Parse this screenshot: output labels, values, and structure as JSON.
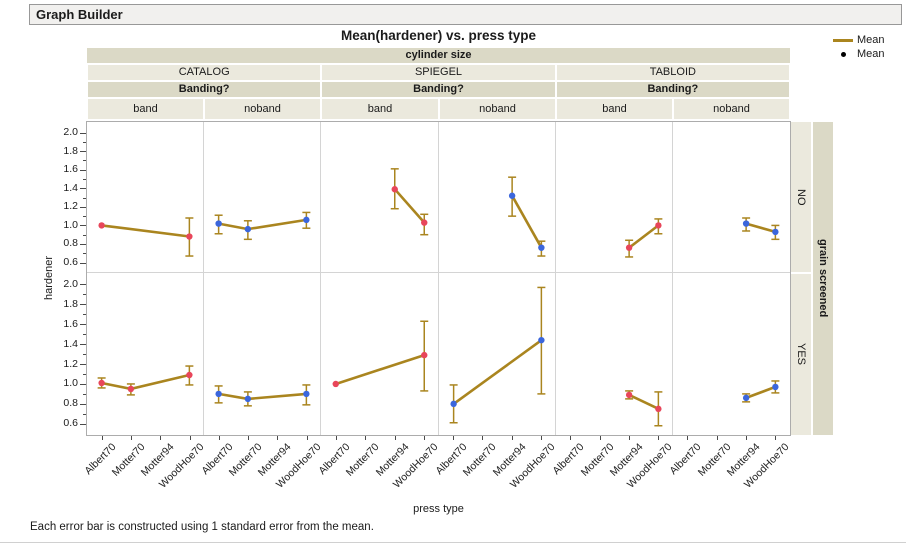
{
  "window": {
    "title": "Graph Builder"
  },
  "legend": {
    "line_label": "Mean",
    "point_label": "Mean"
  },
  "footer_note": "Each error bar is constructed using 1 standard error from the mean.",
  "colors": {
    "mean_line": "#aa851f",
    "markers": {
      "band": "#e8465a",
      "noband": "#3b66dc"
    },
    "legend_point": "#000000",
    "header_dark": "#dbd9c6",
    "header_light": "#ebe9dd",
    "frame_border": "#acacac",
    "inner_divider": "#d4d4d4"
  },
  "chart_data": {
    "type": "line",
    "title": "Mean(hardener) vs. press type",
    "xlabel": "press type",
    "ylabel": "hardener",
    "x_categories": [
      "Albert70",
      "Motter70",
      "Motter94",
      "WoodHoe70"
    ],
    "yticks": [
      0.6,
      0.8,
      1.0,
      1.2,
      1.4,
      1.6,
      1.8,
      2.0
    ],
    "ylim": [
      0.487,
      2.115
    ],
    "grid": false,
    "legend_position": "top-right",
    "column_group_label": "cylinder size",
    "column_groups": [
      "CATALOG",
      "SPIEGEL",
      "TABLOID"
    ],
    "column_subgroup_label": "Banding?",
    "column_subgroups": [
      "band",
      "noband"
    ],
    "row_group_label": "grain screened",
    "row_groups": [
      "NO",
      "YES"
    ],
    "error_bar": "1 standard error of the mean",
    "panels": [
      {
        "row": "NO",
        "col": "CATALOG",
        "sub": "band",
        "points": [
          {
            "x": "Albert70",
            "mean": 1.0
          },
          {
            "x": "WoodHoe70",
            "mean": 0.88,
            "lo": 0.67,
            "hi": 1.08
          }
        ]
      },
      {
        "row": "NO",
        "col": "CATALOG",
        "sub": "noband",
        "points": [
          {
            "x": "Albert70",
            "mean": 1.02,
            "lo": 0.91,
            "hi": 1.11
          },
          {
            "x": "Motter70",
            "mean": 0.96,
            "lo": 0.85,
            "hi": 1.05
          },
          {
            "x": "WoodHoe70",
            "mean": 1.06,
            "lo": 0.97,
            "hi": 1.14
          }
        ]
      },
      {
        "row": "NO",
        "col": "SPIEGEL",
        "sub": "band",
        "points": [
          {
            "x": "Motter94",
            "mean": 1.39,
            "lo": 1.18,
            "hi": 1.61
          },
          {
            "x": "WoodHoe70",
            "mean": 1.03,
            "lo": 0.9,
            "hi": 1.12
          }
        ]
      },
      {
        "row": "NO",
        "col": "SPIEGEL",
        "sub": "noband",
        "points": [
          {
            "x": "Motter94",
            "mean": 1.32,
            "lo": 1.1,
            "hi": 1.52
          },
          {
            "x": "WoodHoe70",
            "mean": 0.76,
            "lo": 0.67,
            "hi": 0.83
          }
        ]
      },
      {
        "row": "NO",
        "col": "TABLOID",
        "sub": "band",
        "points": [
          {
            "x": "Motter94",
            "mean": 0.76,
            "lo": 0.66,
            "hi": 0.84
          },
          {
            "x": "WoodHoe70",
            "mean": 1.0,
            "lo": 0.91,
            "hi": 1.07
          }
        ]
      },
      {
        "row": "NO",
        "col": "TABLOID",
        "sub": "noband",
        "points": [
          {
            "x": "Motter94",
            "mean": 1.02,
            "lo": 0.94,
            "hi": 1.08
          },
          {
            "x": "WoodHoe70",
            "mean": 0.93,
            "lo": 0.85,
            "hi": 1.0
          }
        ]
      },
      {
        "row": "YES",
        "col": "CATALOG",
        "sub": "band",
        "points": [
          {
            "x": "Albert70",
            "mean": 1.01,
            "lo": 0.96,
            "hi": 1.06
          },
          {
            "x": "Motter70",
            "mean": 0.95,
            "lo": 0.89,
            "hi": 1.0
          },
          {
            "x": "WoodHoe70",
            "mean": 1.09,
            "lo": 0.99,
            "hi": 1.18
          }
        ]
      },
      {
        "row": "YES",
        "col": "CATALOG",
        "sub": "noband",
        "points": [
          {
            "x": "Albert70",
            "mean": 0.9,
            "lo": 0.81,
            "hi": 0.98
          },
          {
            "x": "Motter70",
            "mean": 0.85,
            "lo": 0.78,
            "hi": 0.92
          },
          {
            "x": "WoodHoe70",
            "mean": 0.9,
            "lo": 0.79,
            "hi": 0.99
          }
        ]
      },
      {
        "row": "YES",
        "col": "SPIEGEL",
        "sub": "band",
        "points": [
          {
            "x": "Albert70",
            "mean": 1.0
          },
          {
            "x": "WoodHoe70",
            "mean": 1.29,
            "lo": 0.93,
            "hi": 1.63
          }
        ]
      },
      {
        "row": "YES",
        "col": "SPIEGEL",
        "sub": "noband",
        "points": [
          {
            "x": "Albert70",
            "mean": 0.8,
            "lo": 0.61,
            "hi": 0.99
          },
          {
            "x": "WoodHoe70",
            "mean": 1.44,
            "lo": 0.9,
            "hi": 1.97
          }
        ]
      },
      {
        "row": "YES",
        "col": "TABLOID",
        "sub": "band",
        "points": [
          {
            "x": "Motter94",
            "mean": 0.89,
            "lo": 0.85,
            "hi": 0.93
          },
          {
            "x": "WoodHoe70",
            "mean": 0.75,
            "lo": 0.58,
            "hi": 0.92
          }
        ]
      },
      {
        "row": "YES",
        "col": "TABLOID",
        "sub": "noband",
        "points": [
          {
            "x": "Motter94",
            "mean": 0.86,
            "lo": 0.82,
            "hi": 0.9
          },
          {
            "x": "WoodHoe70",
            "mean": 0.97,
            "lo": 0.91,
            "hi": 1.03
          }
        ]
      }
    ]
  }
}
